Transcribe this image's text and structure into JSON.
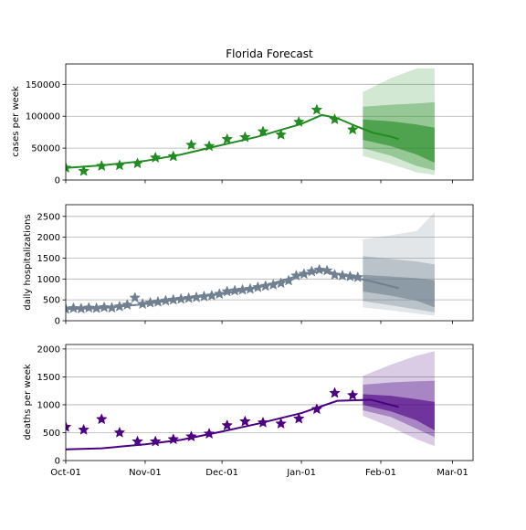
{
  "title": "Florida Forecast",
  "chart_data": [
    {
      "type": "line",
      "panel": "cases",
      "ylabel": "cases per week",
      "ylim": [
        0,
        182000
      ],
      "yticks": [
        0,
        50000,
        100000,
        150000
      ],
      "ytick_labels": [
        "0",
        "50000",
        "100000",
        "150000"
      ],
      "grid": "horizontal",
      "color": "#228B22",
      "points": [
        {
          "x": "2020-10-01",
          "y": 19000
        },
        {
          "x": "2020-10-08",
          "y": 14000
        },
        {
          "x": "2020-10-15",
          "y": 22000
        },
        {
          "x": "2020-10-22",
          "y": 23000
        },
        {
          "x": "2020-10-29",
          "y": 26000
        },
        {
          "x": "2020-11-05",
          "y": 35000
        },
        {
          "x": "2020-11-12",
          "y": 37000
        },
        {
          "x": "2020-11-19",
          "y": 55000
        },
        {
          "x": "2020-11-26",
          "y": 53000
        },
        {
          "x": "2020-12-03",
          "y": 64000
        },
        {
          "x": "2020-12-10",
          "y": 67000
        },
        {
          "x": "2020-12-17",
          "y": 76000
        },
        {
          "x": "2020-12-24",
          "y": 71000
        },
        {
          "x": "2020-12-31",
          "y": 91000
        },
        {
          "x": "2021-01-07",
          "y": 110000
        },
        {
          "x": "2021-01-14",
          "y": 95000
        },
        {
          "x": "2021-01-21",
          "y": 79000
        }
      ],
      "fit": [
        {
          "x": "2020-10-01",
          "y": 19000
        },
        {
          "x": "2020-10-15",
          "y": 23000
        },
        {
          "x": "2020-11-01",
          "y": 30000
        },
        {
          "x": "2020-11-15",
          "y": 40000
        },
        {
          "x": "2020-12-01",
          "y": 55000
        },
        {
          "x": "2020-12-15",
          "y": 68000
        },
        {
          "x": "2021-01-01",
          "y": 88000
        },
        {
          "x": "2021-01-09",
          "y": 102000
        },
        {
          "x": "2021-01-15",
          "y": 97000
        },
        {
          "x": "2021-01-22",
          "y": 85000
        },
        {
          "x": "2021-01-29",
          "y": 74000
        },
        {
          "x": "2021-02-05",
          "y": 68000
        },
        {
          "x": "2021-02-08",
          "y": 64000
        }
      ],
      "bands": [
        {
          "x": [
            "2021-01-25",
            "2021-02-05",
            "2021-02-15",
            "2021-02-22"
          ],
          "lower": [
            38000,
            25000,
            12000,
            8000
          ],
          "upper": [
            138000,
            160000,
            175000,
            175000
          ]
        },
        {
          "x": [
            "2021-01-25",
            "2021-02-05",
            "2021-02-15",
            "2021-02-22"
          ],
          "lower": [
            50000,
            38000,
            22000,
            15000
          ],
          "upper": [
            115000,
            118000,
            120000,
            122000
          ]
        },
        {
          "x": [
            "2021-01-25",
            "2021-02-05",
            "2021-02-15",
            "2021-02-22"
          ],
          "lower": [
            63000,
            53000,
            40000,
            27000
          ],
          "upper": [
            95000,
            92000,
            87000,
            82000
          ]
        }
      ]
    },
    {
      "type": "line",
      "panel": "hospitalizations",
      "ylabel": "daily hospitalizations",
      "ylim": [
        0,
        2780
      ],
      "yticks": [
        0,
        500,
        1000,
        1500,
        2000,
        2500
      ],
      "ytick_labels": [
        "0",
        "500",
        "1000",
        "1500",
        "2000",
        "2500"
      ],
      "grid": "horizontal",
      "color": "#708090",
      "points": [
        {
          "x": "2020-10-01",
          "y": 280
        },
        {
          "x": "2020-10-04",
          "y": 300
        },
        {
          "x": "2020-10-07",
          "y": 290
        },
        {
          "x": "2020-10-10",
          "y": 310
        },
        {
          "x": "2020-10-13",
          "y": 300
        },
        {
          "x": "2020-10-16",
          "y": 320
        },
        {
          "x": "2020-10-19",
          "y": 310
        },
        {
          "x": "2020-10-22",
          "y": 340
        },
        {
          "x": "2020-10-25",
          "y": 380
        },
        {
          "x": "2020-10-28",
          "y": 550
        },
        {
          "x": "2020-10-31",
          "y": 400
        },
        {
          "x": "2020-11-03",
          "y": 430
        },
        {
          "x": "2020-11-06",
          "y": 450
        },
        {
          "x": "2020-11-09",
          "y": 480
        },
        {
          "x": "2020-11-12",
          "y": 500
        },
        {
          "x": "2020-11-15",
          "y": 520
        },
        {
          "x": "2020-11-18",
          "y": 540
        },
        {
          "x": "2020-11-21",
          "y": 560
        },
        {
          "x": "2020-11-24",
          "y": 580
        },
        {
          "x": "2020-11-27",
          "y": 600
        },
        {
          "x": "2020-11-30",
          "y": 640
        },
        {
          "x": "2020-12-03",
          "y": 700
        },
        {
          "x": "2020-12-06",
          "y": 720
        },
        {
          "x": "2020-12-09",
          "y": 740
        },
        {
          "x": "2020-12-12",
          "y": 760
        },
        {
          "x": "2020-12-15",
          "y": 800
        },
        {
          "x": "2020-12-18",
          "y": 830
        },
        {
          "x": "2020-12-21",
          "y": 860
        },
        {
          "x": "2020-12-24",
          "y": 900
        },
        {
          "x": "2020-12-27",
          "y": 960
        },
        {
          "x": "2020-12-30",
          "y": 1080
        },
        {
          "x": "2021-01-02",
          "y": 1120
        },
        {
          "x": "2021-01-05",
          "y": 1180
        },
        {
          "x": "2021-01-08",
          "y": 1220
        },
        {
          "x": "2021-01-11",
          "y": 1200
        },
        {
          "x": "2021-01-14",
          "y": 1100
        },
        {
          "x": "2021-01-17",
          "y": 1080
        },
        {
          "x": "2021-01-20",
          "y": 1060
        },
        {
          "x": "2021-01-23",
          "y": 1040
        }
      ],
      "fit": [
        {
          "x": "2020-10-01",
          "y": 280
        },
        {
          "x": "2020-10-15",
          "y": 300
        },
        {
          "x": "2020-11-01",
          "y": 400
        },
        {
          "x": "2020-11-15",
          "y": 520
        },
        {
          "x": "2020-12-01",
          "y": 640
        },
        {
          "x": "2020-12-15",
          "y": 790
        },
        {
          "x": "2021-01-01",
          "y": 1100
        },
        {
          "x": "2021-01-10",
          "y": 1200
        },
        {
          "x": "2021-01-20",
          "y": 1050
        },
        {
          "x": "2021-01-28",
          "y": 950
        },
        {
          "x": "2021-02-08",
          "y": 780
        }
      ],
      "bands": [
        {
          "x": [
            "2021-01-25",
            "2021-02-05",
            "2021-02-15",
            "2021-02-22"
          ],
          "lower": [
            320,
            250,
            170,
            120
          ],
          "upper": [
            1950,
            2050,
            2150,
            2600
          ]
        },
        {
          "x": [
            "2021-01-25",
            "2021-02-05",
            "2021-02-15",
            "2021-02-22"
          ],
          "lower": [
            470,
            370,
            270,
            200
          ],
          "upper": [
            1550,
            1480,
            1420,
            1350
          ]
        },
        {
          "x": [
            "2021-01-25",
            "2021-02-05",
            "2021-02-15",
            "2021-02-22"
          ],
          "lower": [
            700,
            600,
            480,
            320
          ],
          "upper": [
            1100,
            1060,
            1020,
            970
          ]
        }
      ]
    },
    {
      "type": "line",
      "panel": "deaths",
      "ylabel": "deaths per week",
      "ylim": [
        0,
        2080
      ],
      "yticks": [
        0,
        500,
        1000,
        1500,
        2000
      ],
      "ytick_labels": [
        "0",
        "500",
        "1000",
        "1500",
        "2000"
      ],
      "grid": "horizontal",
      "color": "#4B0082",
      "points": [
        {
          "x": "2020-10-01",
          "y": 600
        },
        {
          "x": "2020-10-08",
          "y": 550
        },
        {
          "x": "2020-10-15",
          "y": 740
        },
        {
          "x": "2020-10-22",
          "y": 500
        },
        {
          "x": "2020-10-29",
          "y": 340
        },
        {
          "x": "2020-11-05",
          "y": 340
        },
        {
          "x": "2020-11-12",
          "y": 380
        },
        {
          "x": "2020-11-19",
          "y": 430
        },
        {
          "x": "2020-11-26",
          "y": 480
        },
        {
          "x": "2020-12-03",
          "y": 630
        },
        {
          "x": "2020-12-10",
          "y": 700
        },
        {
          "x": "2020-12-17",
          "y": 680
        },
        {
          "x": "2020-12-24",
          "y": 660
        },
        {
          "x": "2020-12-31",
          "y": 750
        },
        {
          "x": "2021-01-07",
          "y": 920
        },
        {
          "x": "2021-01-14",
          "y": 1210
        },
        {
          "x": "2021-01-21",
          "y": 1170
        }
      ],
      "fit": [
        {
          "x": "2020-10-01",
          "y": 200
        },
        {
          "x": "2020-10-15",
          "y": 220
        },
        {
          "x": "2020-11-01",
          "y": 290
        },
        {
          "x": "2020-11-15",
          "y": 370
        },
        {
          "x": "2020-12-01",
          "y": 520
        },
        {
          "x": "2020-12-15",
          "y": 660
        },
        {
          "x": "2021-01-01",
          "y": 850
        },
        {
          "x": "2021-01-15",
          "y": 1070
        },
        {
          "x": "2021-01-28",
          "y": 1090
        },
        {
          "x": "2021-02-08",
          "y": 960
        }
      ],
      "bands": [
        {
          "x": [
            "2021-01-25",
            "2021-02-05",
            "2021-02-15",
            "2021-02-22"
          ],
          "lower": [
            800,
            600,
            380,
            260
          ],
          "upper": [
            1520,
            1720,
            1880,
            1960
          ]
        },
        {
          "x": [
            "2021-01-25",
            "2021-02-05",
            "2021-02-15",
            "2021-02-22"
          ],
          "lower": [
            900,
            780,
            570,
            420
          ],
          "upper": [
            1360,
            1400,
            1420,
            1430
          ]
        },
        {
          "x": [
            "2021-01-25",
            "2021-02-05",
            "2021-02-15",
            "2021-02-22"
          ],
          "lower": [
            1000,
            880,
            720,
            540
          ],
          "upper": [
            1190,
            1160,
            1100,
            1050
          ]
        }
      ]
    }
  ],
  "x_axis": {
    "xlim": [
      "2020-10-01",
      "2021-03-09"
    ],
    "ticks": [
      "2020-10-01",
      "2020-11-01",
      "2020-12-01",
      "2021-01-01",
      "2021-02-01",
      "2021-03-01"
    ],
    "tick_labels": [
      "Oct-01",
      "Nov-01",
      "Dec-01",
      "Jan-01",
      "Feb-01",
      "Mar-01"
    ]
  }
}
